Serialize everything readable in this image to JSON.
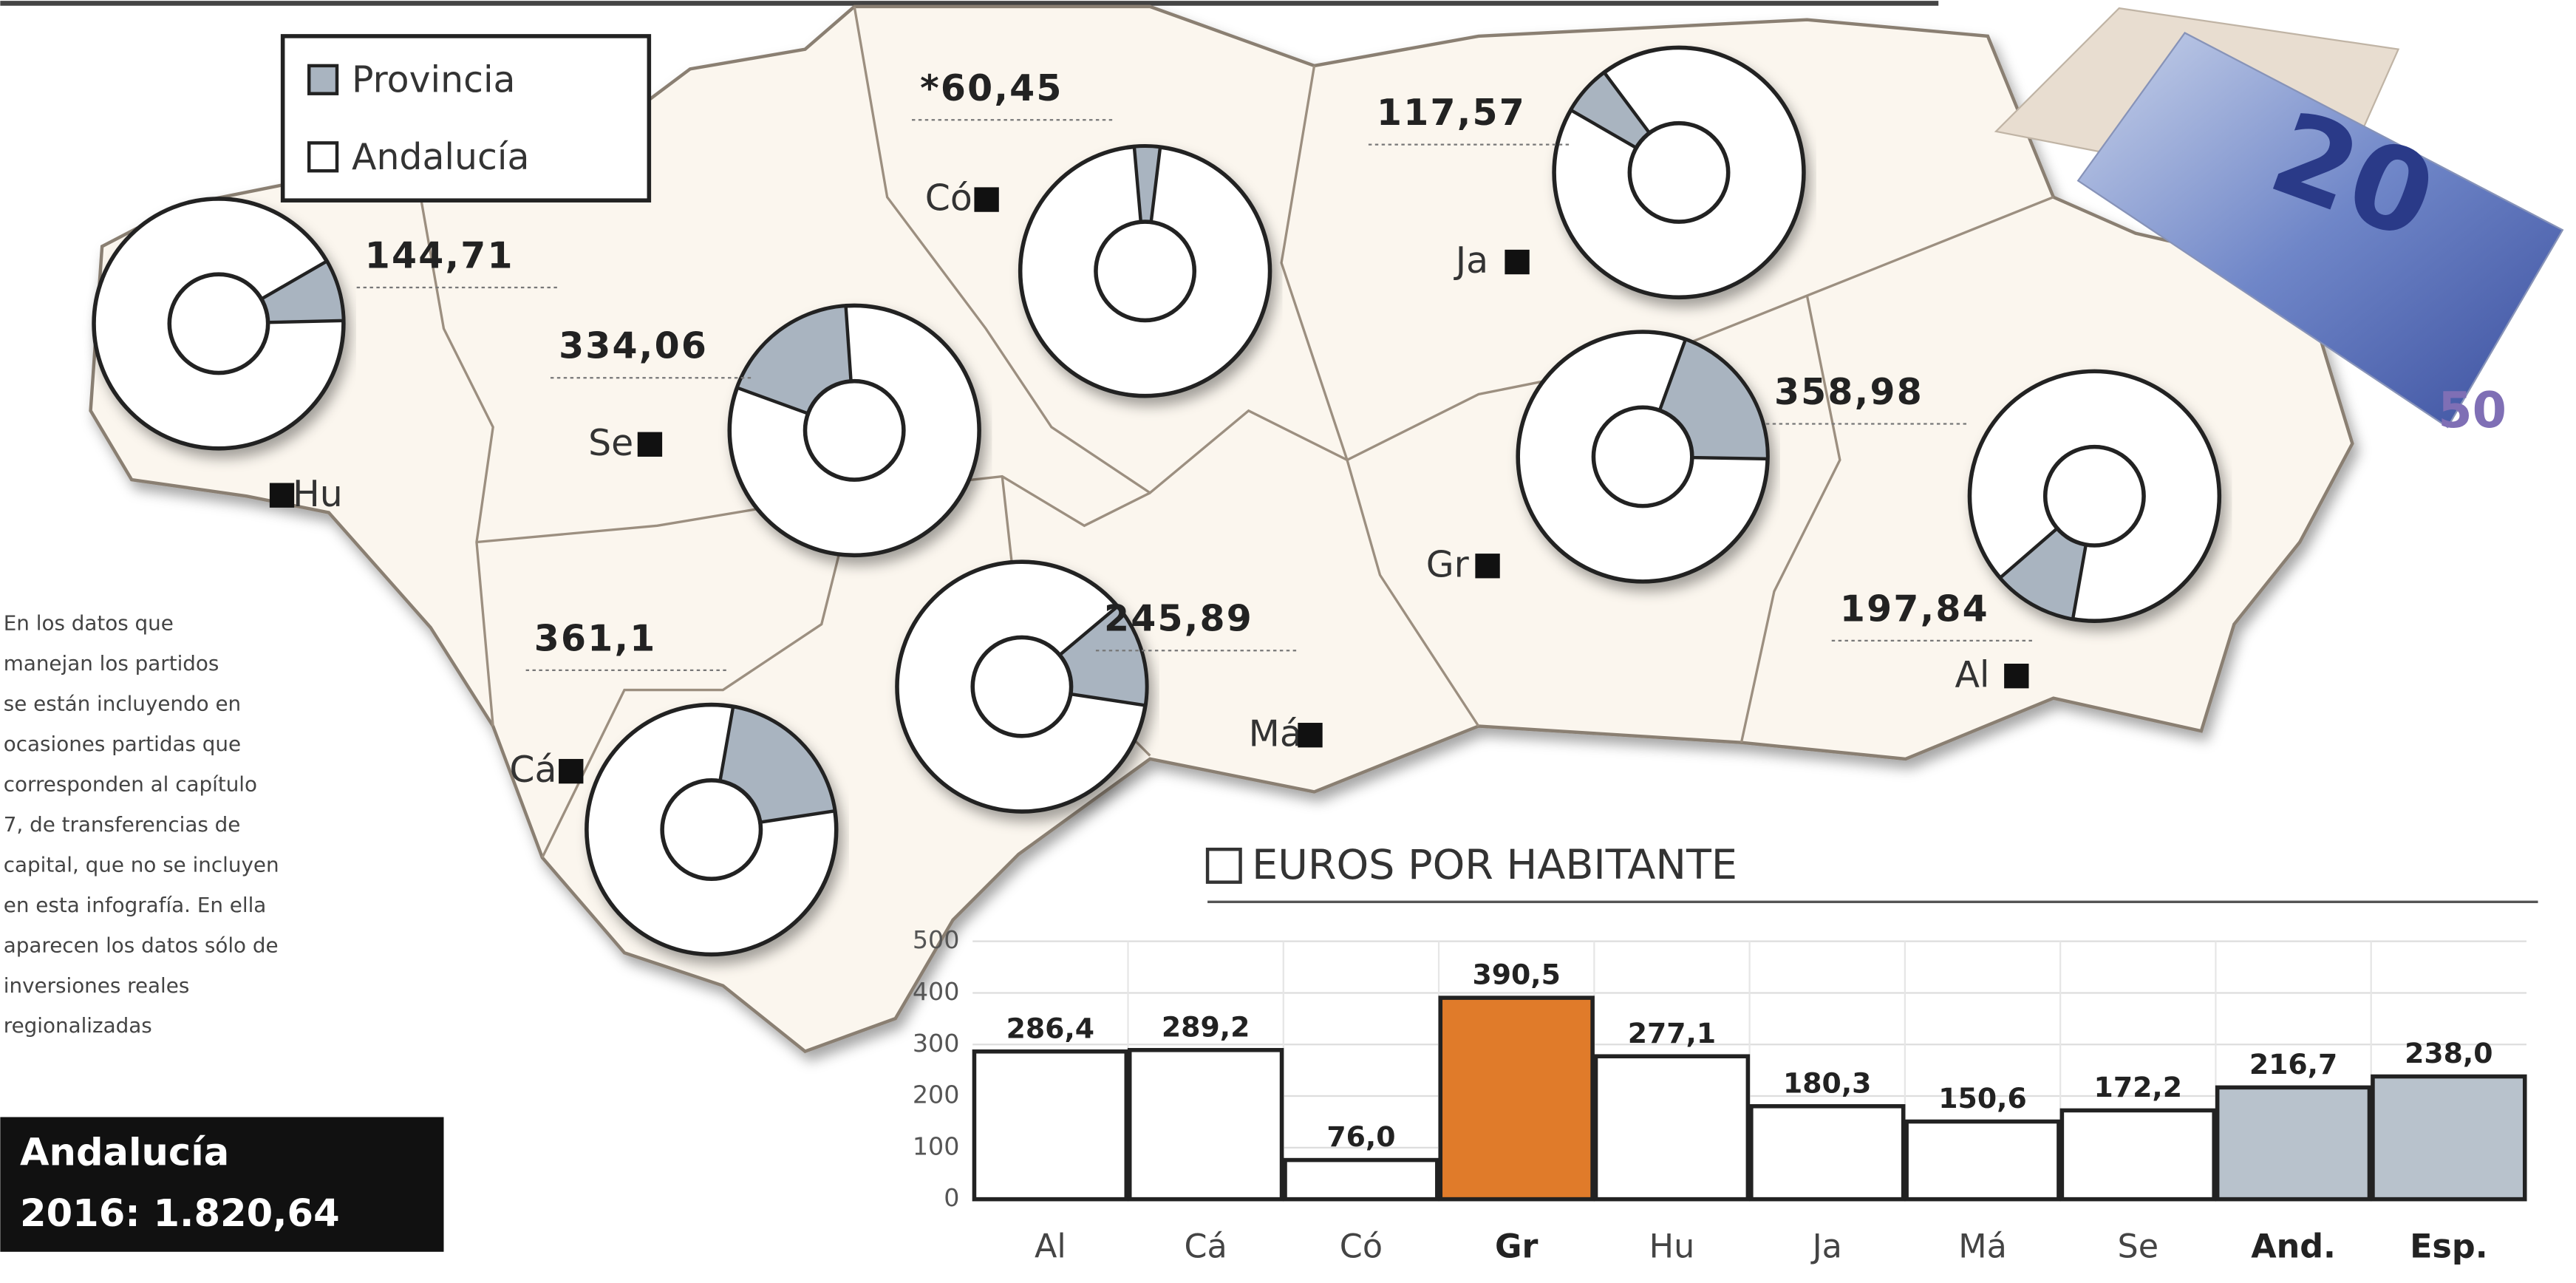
{
  "banknote_labels": [
    "20",
    "50"
  ],
  "chart_data": [
    {
      "type": "donut-map",
      "legend": [
        {
          "name": "Provincia",
          "color": "#a9b4c0"
        },
        {
          "name": "Andalucía",
          "color": "#ffffff"
        }
      ],
      "categories": [
        "Hu",
        "Se",
        "Có",
        "Ja",
        "Gr",
        "Al",
        "Cá",
        "Má"
      ],
      "values": [
        144.71,
        334.06,
        60.45,
        117.57,
        358.98,
        197.84,
        361.1,
        245.89
      ],
      "value_labels": [
        "144,71",
        "334,06",
        "*60,45",
        "117,57",
        "358,98",
        "197,84",
        "361,1",
        "245,89"
      ],
      "total_title": "Andalucía",
      "total": 1820.64,
      "total_label": "2016: 1.820,64",
      "note_lines": [
        "En los datos que",
        "manejan los partidos",
        "se están incluyendo en",
        "ocasiones partidas que",
        "corresponden al capítulo",
        "7, de transferencias de",
        "capital, que no se incluyen",
        "en esta infografía. En ella",
        "aparecen los datos sólo de",
        "inversiones reales",
        "regionalizadas"
      ]
    },
    {
      "type": "bar",
      "title": "EUROS POR HABITANTE",
      "categories": [
        "Al",
        "Cá",
        "Có",
        "Gr",
        "Hu",
        "Ja",
        "Má",
        "Se",
        "And.",
        "Esp."
      ],
      "values": [
        286.4,
        289.2,
        76.0,
        390.5,
        277.1,
        180.3,
        150.6,
        172.2,
        216.7,
        238.0
      ],
      "value_labels": [
        "286,4",
        "289,2",
        "76,0",
        "390,5",
        "277,1",
        "180,3",
        "150,6",
        "172,2",
        "216,7",
        "238,0"
      ],
      "colors": [
        "#ffffff",
        "#ffffff",
        "#ffffff",
        "#e07b2a",
        "#ffffff",
        "#ffffff",
        "#ffffff",
        "#ffffff",
        "#b8c2cc",
        "#b8c2cc"
      ],
      "ylim": [
        0,
        500
      ],
      "yticks": [
        0,
        100,
        200,
        300,
        400,
        500
      ],
      "grid": true
    }
  ]
}
